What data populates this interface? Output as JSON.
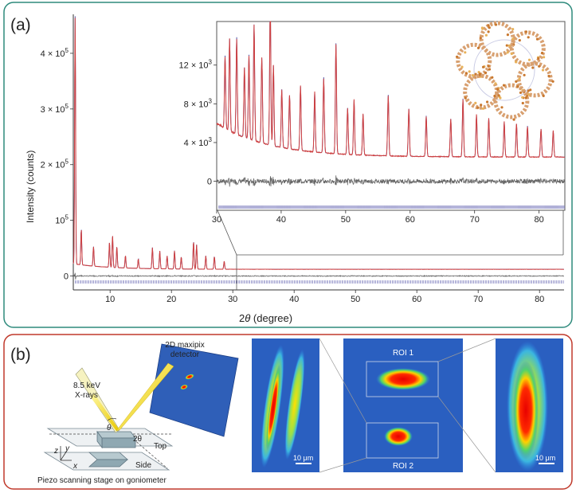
{
  "panel_a": {
    "label": "(a)",
    "border_color": "#2e8a7c",
    "main_chart": {
      "type": "line",
      "xlabel_prefix": "2",
      "xlabel_theta": "θ",
      "xlabel_unit": " (degree)",
      "ylabel": "Intensity (counts)",
      "xlim": [
        4,
        84
      ],
      "ylim": [
        -25000,
        470000
      ],
      "xticks": [
        10,
        20,
        30,
        40,
        50,
        60,
        70,
        80
      ],
      "yticks": [
        {
          "value": 0,
          "base": "0",
          "exp": ""
        },
        {
          "value": 100000,
          "base": "10",
          "exp": "5"
        },
        {
          "value": 200000,
          "base": "2 × 10",
          "exp": "5"
        },
        {
          "value": 300000,
          "base": "3 × 10",
          "exp": "5"
        },
        {
          "value": 400000,
          "base": "4 × 10",
          "exp": "5"
        }
      ],
      "observed_color": "#d04040",
      "calculated_color": "#4a4aa0",
      "difference_color": "#666666",
      "tick_color": "#6a6ab4",
      "peaks": [
        {
          "x": 4.3,
          "y": 445000
        },
        {
          "x": 5.3,
          "y": 65000
        },
        {
          "x": 7.3,
          "y": 35000
        },
        {
          "x": 9.9,
          "y": 45000
        },
        {
          "x": 10.4,
          "y": 58000
        },
        {
          "x": 11.1,
          "y": 38000
        },
        {
          "x": 12.5,
          "y": 22000
        },
        {
          "x": 14.6,
          "y": 17000
        },
        {
          "x": 16.9,
          "y": 38000
        },
        {
          "x": 18.1,
          "y": 32000
        },
        {
          "x": 19.3,
          "y": 23000
        },
        {
          "x": 20.5,
          "y": 33000
        },
        {
          "x": 21.6,
          "y": 22000
        },
        {
          "x": 23.6,
          "y": 50000
        },
        {
          "x": 24.1,
          "y": 44000
        },
        {
          "x": 25.6,
          "y": 24000
        },
        {
          "x": 27.0,
          "y": 23000
        },
        {
          "x": 28.6,
          "y": 14000
        }
      ]
    },
    "inset_chart": {
      "type": "line",
      "xlim": [
        30,
        84
      ],
      "ylim": [
        -2500,
        16500
      ],
      "xticks": [
        30,
        40,
        50,
        60,
        70,
        80
      ],
      "yticks": [
        {
          "value": 0,
          "base": "0",
          "exp": ""
        },
        {
          "value": 4000,
          "base": "4 × 10",
          "exp": "3"
        },
        {
          "value": 8000,
          "base": "8 × 10",
          "exp": "3"
        },
        {
          "value": 12000,
          "base": "12 × 10",
          "exp": "3"
        }
      ],
      "peaks": [
        {
          "x": 31.3,
          "y": 7500
        },
        {
          "x": 32.0,
          "y": 9500
        },
        {
          "x": 33.1,
          "y": 10000
        },
        {
          "x": 34.3,
          "y": 7200
        },
        {
          "x": 35.0,
          "y": 8700
        },
        {
          "x": 35.8,
          "y": 12000
        },
        {
          "x": 37.0,
          "y": 8800
        },
        {
          "x": 38.3,
          "y": 14800
        },
        {
          "x": 38.8,
          "y": 8300
        },
        {
          "x": 40.1,
          "y": 6000
        },
        {
          "x": 41.3,
          "y": 5500
        },
        {
          "x": 43.0,
          "y": 6600
        },
        {
          "x": 45.2,
          "y": 6200
        },
        {
          "x": 46.6,
          "y": 7800
        },
        {
          "x": 48.5,
          "y": 11400
        },
        {
          "x": 50.3,
          "y": 4800
        },
        {
          "x": 51.3,
          "y": 5600
        },
        {
          "x": 52.7,
          "y": 4200
        },
        {
          "x": 56.6,
          "y": 6300
        },
        {
          "x": 59.8,
          "y": 4900
        },
        {
          "x": 62.5,
          "y": 4200
        },
        {
          "x": 66.3,
          "y": 3900
        },
        {
          "x": 68.2,
          "y": 6000
        },
        {
          "x": 70.3,
          "y": 4300
        },
        {
          "x": 72.2,
          "y": 4000
        },
        {
          "x": 74.6,
          "y": 3600
        },
        {
          "x": 76.5,
          "y": 3400
        },
        {
          "x": 78.2,
          "y": 3200
        },
        {
          "x": 80.3,
          "y": 2900
        },
        {
          "x": 82.2,
          "y": 2700
        }
      ]
    }
  },
  "panel_b": {
    "label": "(b)",
    "border_color": "#c0392b",
    "schematic": {
      "detector_label_line1": "2D maxipix",
      "detector_label_line2": "detector",
      "xray_label_line1": "8.5 keV",
      "xray_label_line2": "X-rays",
      "theta_label": "θ",
      "two_theta_label": "2θ",
      "top_label": "Top",
      "side_label": "Side",
      "axis_z": "z",
      "axis_y": "y",
      "axis_x": "x",
      "stage_label": "Piezo scanning stage on goniometer"
    },
    "maps": {
      "roi1_label": "ROI 1",
      "roi2_label": "ROI 2",
      "scale_left": "10 μm",
      "scale_right": "10 μm",
      "background_color": "#2a5fc0"
    }
  }
}
